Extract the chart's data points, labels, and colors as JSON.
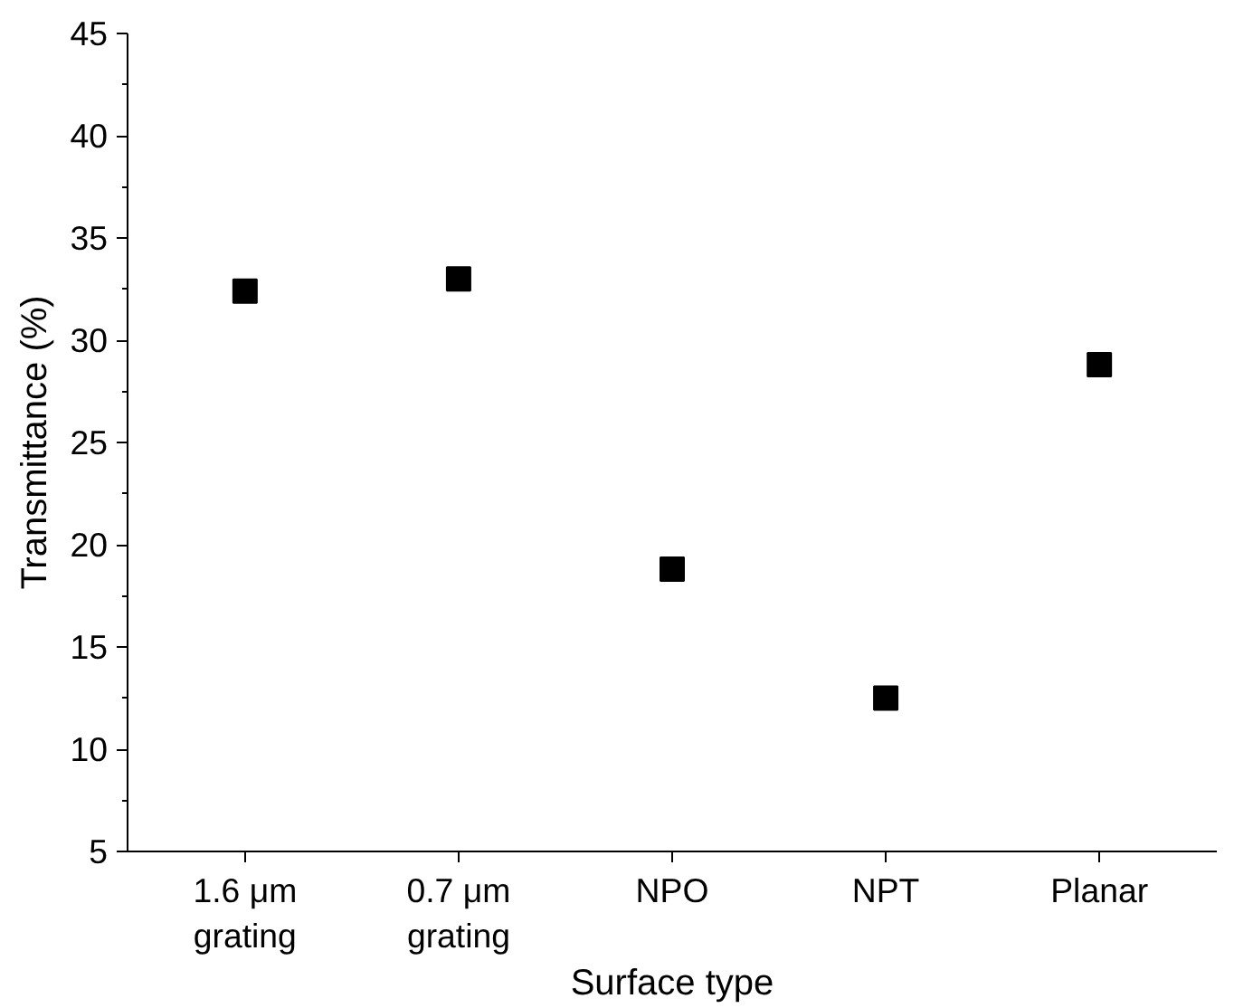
{
  "chart_data": {
    "type": "scatter",
    "xlabel": "Surface type",
    "ylabel": "Transmittance (%)",
    "categories": [
      "1.6 μm\ngrating",
      "0.7 μm\ngrating",
      "NPO",
      "NPT",
      "Planar"
    ],
    "values": [
      32.4,
      33.0,
      18.8,
      12.5,
      28.8
    ],
    "color": "#000000",
    "marker": "square",
    "ylim": [
      5,
      45
    ],
    "yticks": [
      5,
      10,
      15,
      20,
      25,
      30,
      35,
      40,
      45
    ],
    "grid": false
  }
}
